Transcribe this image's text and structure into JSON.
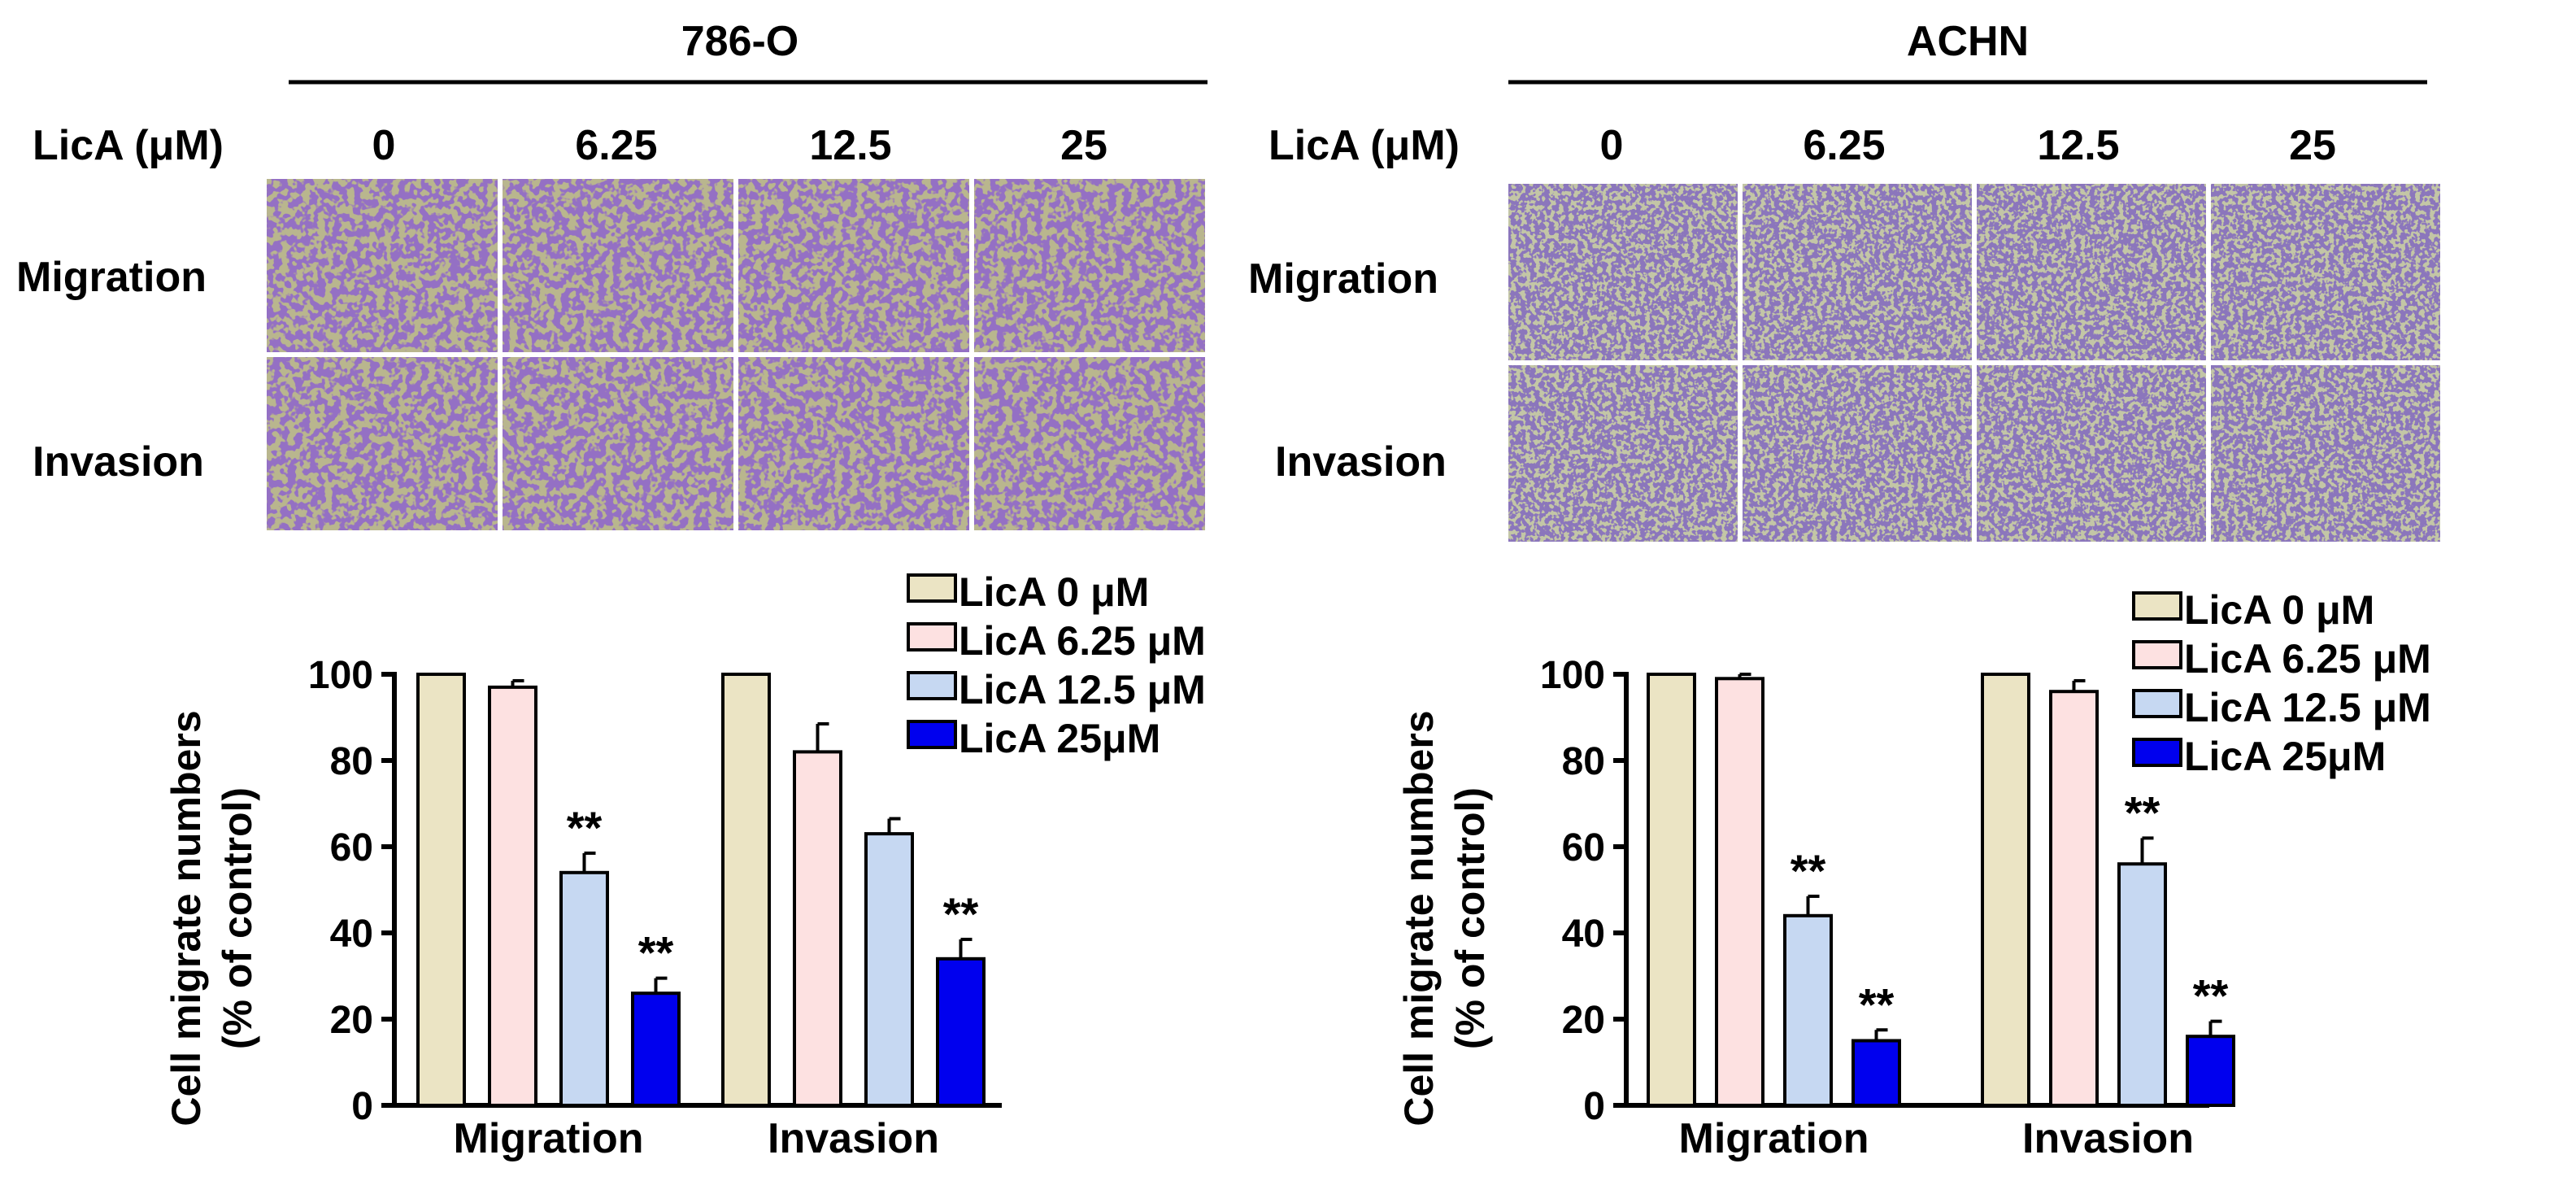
{
  "panels": [
    {
      "cell_line": "786-O",
      "dose_label": "LicA (μM)",
      "doses": [
        "0",
        "6.25",
        "12.5",
        "25"
      ],
      "row_labels": [
        "Migration",
        "Invasion"
      ]
    },
    {
      "cell_line": "ACHN",
      "dose_label": "LicA (μM)",
      "doses": [
        "0",
        "6.25",
        "12.5",
        "25"
      ],
      "row_labels": [
        "Migration",
        "Invasion"
      ]
    }
  ],
  "colors": {
    "LicA 0 μM": "#ebe4c4",
    "LicA 6.25 μM": "#fde1e1",
    "LicA 12.5 μM": "#c6d8f2",
    "LicA 25μM": "#0000ee",
    "micrograph_786O": "#b9b68e",
    "micrograph_ACHN": "#c3c6a6",
    "cell_stain": "#4b2a8c"
  },
  "chart_data": [
    {
      "type": "bar",
      "title": "786-O",
      "categories": [
        "Migration",
        "Invasion"
      ],
      "series": [
        {
          "name": "LicA 0 μM",
          "values": [
            100,
            100
          ],
          "errors": [
            0,
            0
          ],
          "sig": [
            "",
            ""
          ]
        },
        {
          "name": "LicA 6.25 μM",
          "values": [
            97,
            82
          ],
          "errors": [
            1.5,
            6.5
          ],
          "sig": [
            "",
            ""
          ]
        },
        {
          "name": "LicA 12.5 μM",
          "values": [
            54,
            63
          ],
          "errors": [
            4.5,
            3.5
          ],
          "sig": [
            "**",
            ""
          ]
        },
        {
          "name": "LicA 25μM",
          "values": [
            26,
            34
          ],
          "errors": [
            3.5,
            4.5
          ],
          "sig": [
            "**",
            "**"
          ]
        }
      ],
      "ylabel": "Cell migrate numbers",
      "ylabel2": "(% of control)",
      "ylim": [
        0,
        100
      ],
      "yticks": [
        0,
        20,
        40,
        60,
        80,
        100
      ],
      "legend": "top-right"
    },
    {
      "type": "bar",
      "title": "ACHN",
      "categories": [
        "Migration",
        "Invasion"
      ],
      "series": [
        {
          "name": "LicA 0 μM",
          "values": [
            100,
            100
          ],
          "errors": [
            0,
            0
          ],
          "sig": [
            "",
            ""
          ]
        },
        {
          "name": "LicA 6.25 μM",
          "values": [
            99,
            96
          ],
          "errors": [
            1,
            2.5
          ],
          "sig": [
            "",
            ""
          ]
        },
        {
          "name": "LicA 12.5 μM",
          "values": [
            44,
            56
          ],
          "errors": [
            4.5,
            6
          ],
          "sig": [
            "**",
            "**"
          ]
        },
        {
          "name": "LicA 25μM",
          "values": [
            15,
            16
          ],
          "errors": [
            2.5,
            3.5
          ],
          "sig": [
            "**",
            "**"
          ]
        }
      ],
      "ylabel": "Cell migrate numbers",
      "ylabel2": "(% of control)",
      "ylim": [
        0,
        100
      ],
      "yticks": [
        0,
        20,
        40,
        60,
        80,
        100
      ],
      "legend": "top-right"
    }
  ]
}
